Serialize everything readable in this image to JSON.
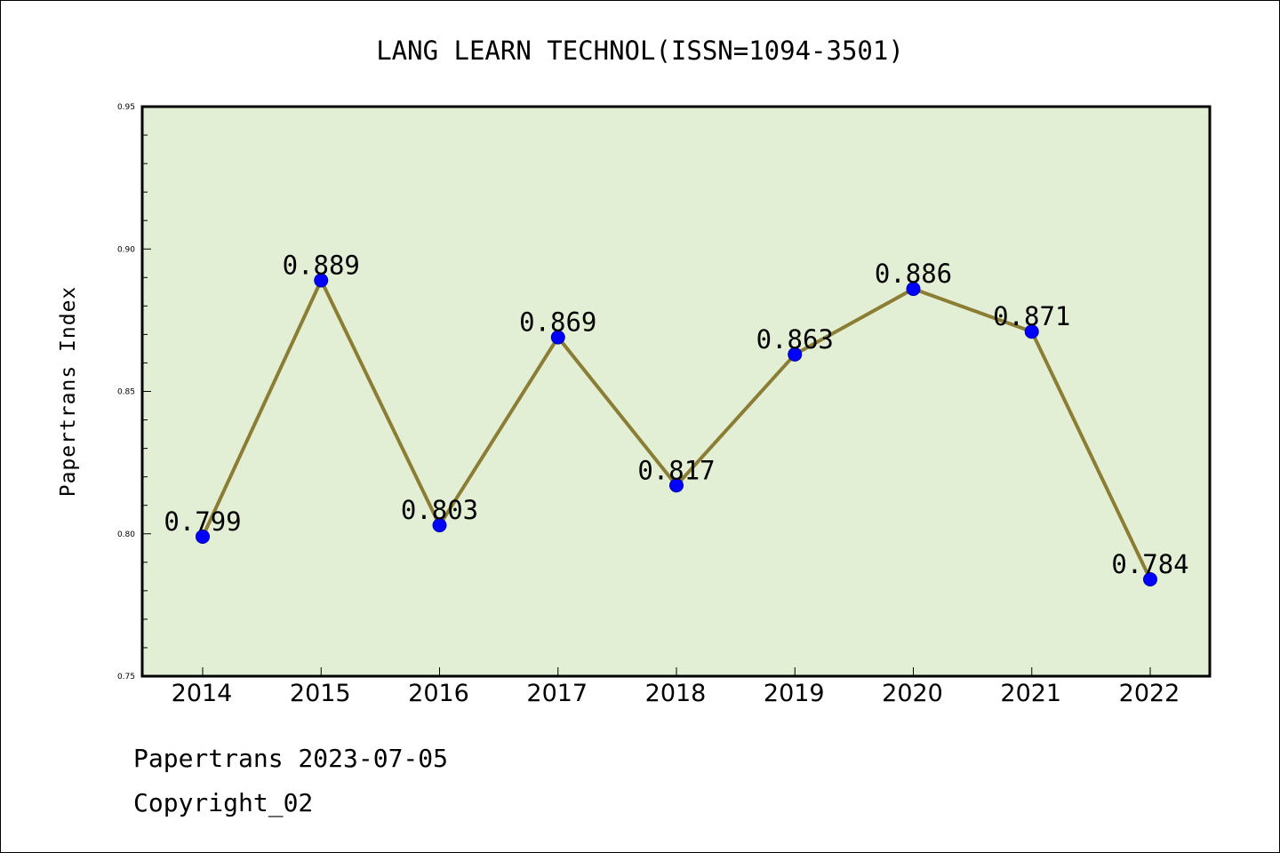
{
  "chart_data": {
    "type": "line",
    "title": "LANG LEARN TECHNOL(ISSN=1094-3501)",
    "ylabel": "Papertrans Index",
    "xlabel": "",
    "categories": [
      "2014",
      "2015",
      "2016",
      "2017",
      "2018",
      "2019",
      "2020",
      "2021",
      "2022"
    ],
    "values": [
      0.799,
      0.889,
      0.803,
      0.869,
      0.817,
      0.863,
      0.886,
      0.871,
      0.784
    ],
    "data_labels": [
      "0.799",
      "0.889",
      "0.803",
      "0.869",
      "0.817",
      "0.863",
      "0.886",
      "0.871",
      "0.784"
    ],
    "ylim": [
      0.75,
      0.95
    ],
    "yticks": [
      {
        "value": 0.75,
        "label": "0.75"
      },
      {
        "value": 0.8,
        "label": "0.80"
      },
      {
        "value": 0.85,
        "label": "0.85"
      },
      {
        "value": 0.9,
        "label": "0.90"
      },
      {
        "value": 0.95,
        "label": "0.95"
      }
    ],
    "grid": false,
    "colors": {
      "plot_background": "#e2efd5",
      "line": "#8b7d33",
      "marker": "#0000ff"
    }
  },
  "footer": {
    "line1": "Papertrans 2023-07-05",
    "line2": "Copyright_02"
  }
}
